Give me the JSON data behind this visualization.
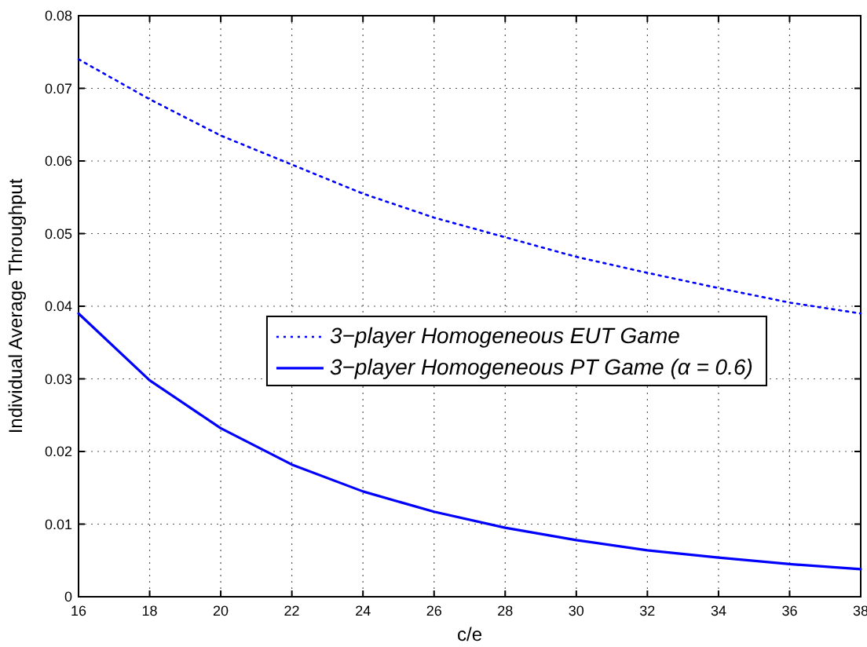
{
  "chart_data": {
    "type": "line",
    "xlabel": "c/e",
    "ylabel": "Individual Average Throughput",
    "x": [
      16,
      18,
      20,
      22,
      24,
      26,
      28,
      30,
      32,
      34,
      36,
      38
    ],
    "series": [
      {
        "name": "3−player Homogeneous EUT Game",
        "color": "#0000ff",
        "line_style": "dotted",
        "values": [
          0.074,
          0.0685,
          0.0635,
          0.0595,
          0.0555,
          0.0522,
          0.0495,
          0.0468,
          0.0446,
          0.0425,
          0.0405,
          0.039
        ]
      },
      {
        "name": "3−player Homogeneous PT Game (α = 0.6)",
        "color": "#0000ff",
        "line_style": "solid",
        "values": [
          0.039,
          0.0298,
          0.0232,
          0.0182,
          0.0145,
          0.0117,
          0.0095,
          0.0078,
          0.0064,
          0.0054,
          0.0045,
          0.0038
        ]
      }
    ],
    "xlim": [
      16,
      38
    ],
    "xticks": [
      16,
      18,
      20,
      22,
      24,
      26,
      28,
      30,
      32,
      34,
      36,
      38
    ],
    "ylim": [
      0,
      0.08
    ],
    "yticks": [
      0,
      0.01,
      0.02,
      0.03,
      0.04,
      0.05,
      0.06,
      0.07,
      0.08
    ],
    "grid": true,
    "legend": "center",
    "marker": "none"
  }
}
